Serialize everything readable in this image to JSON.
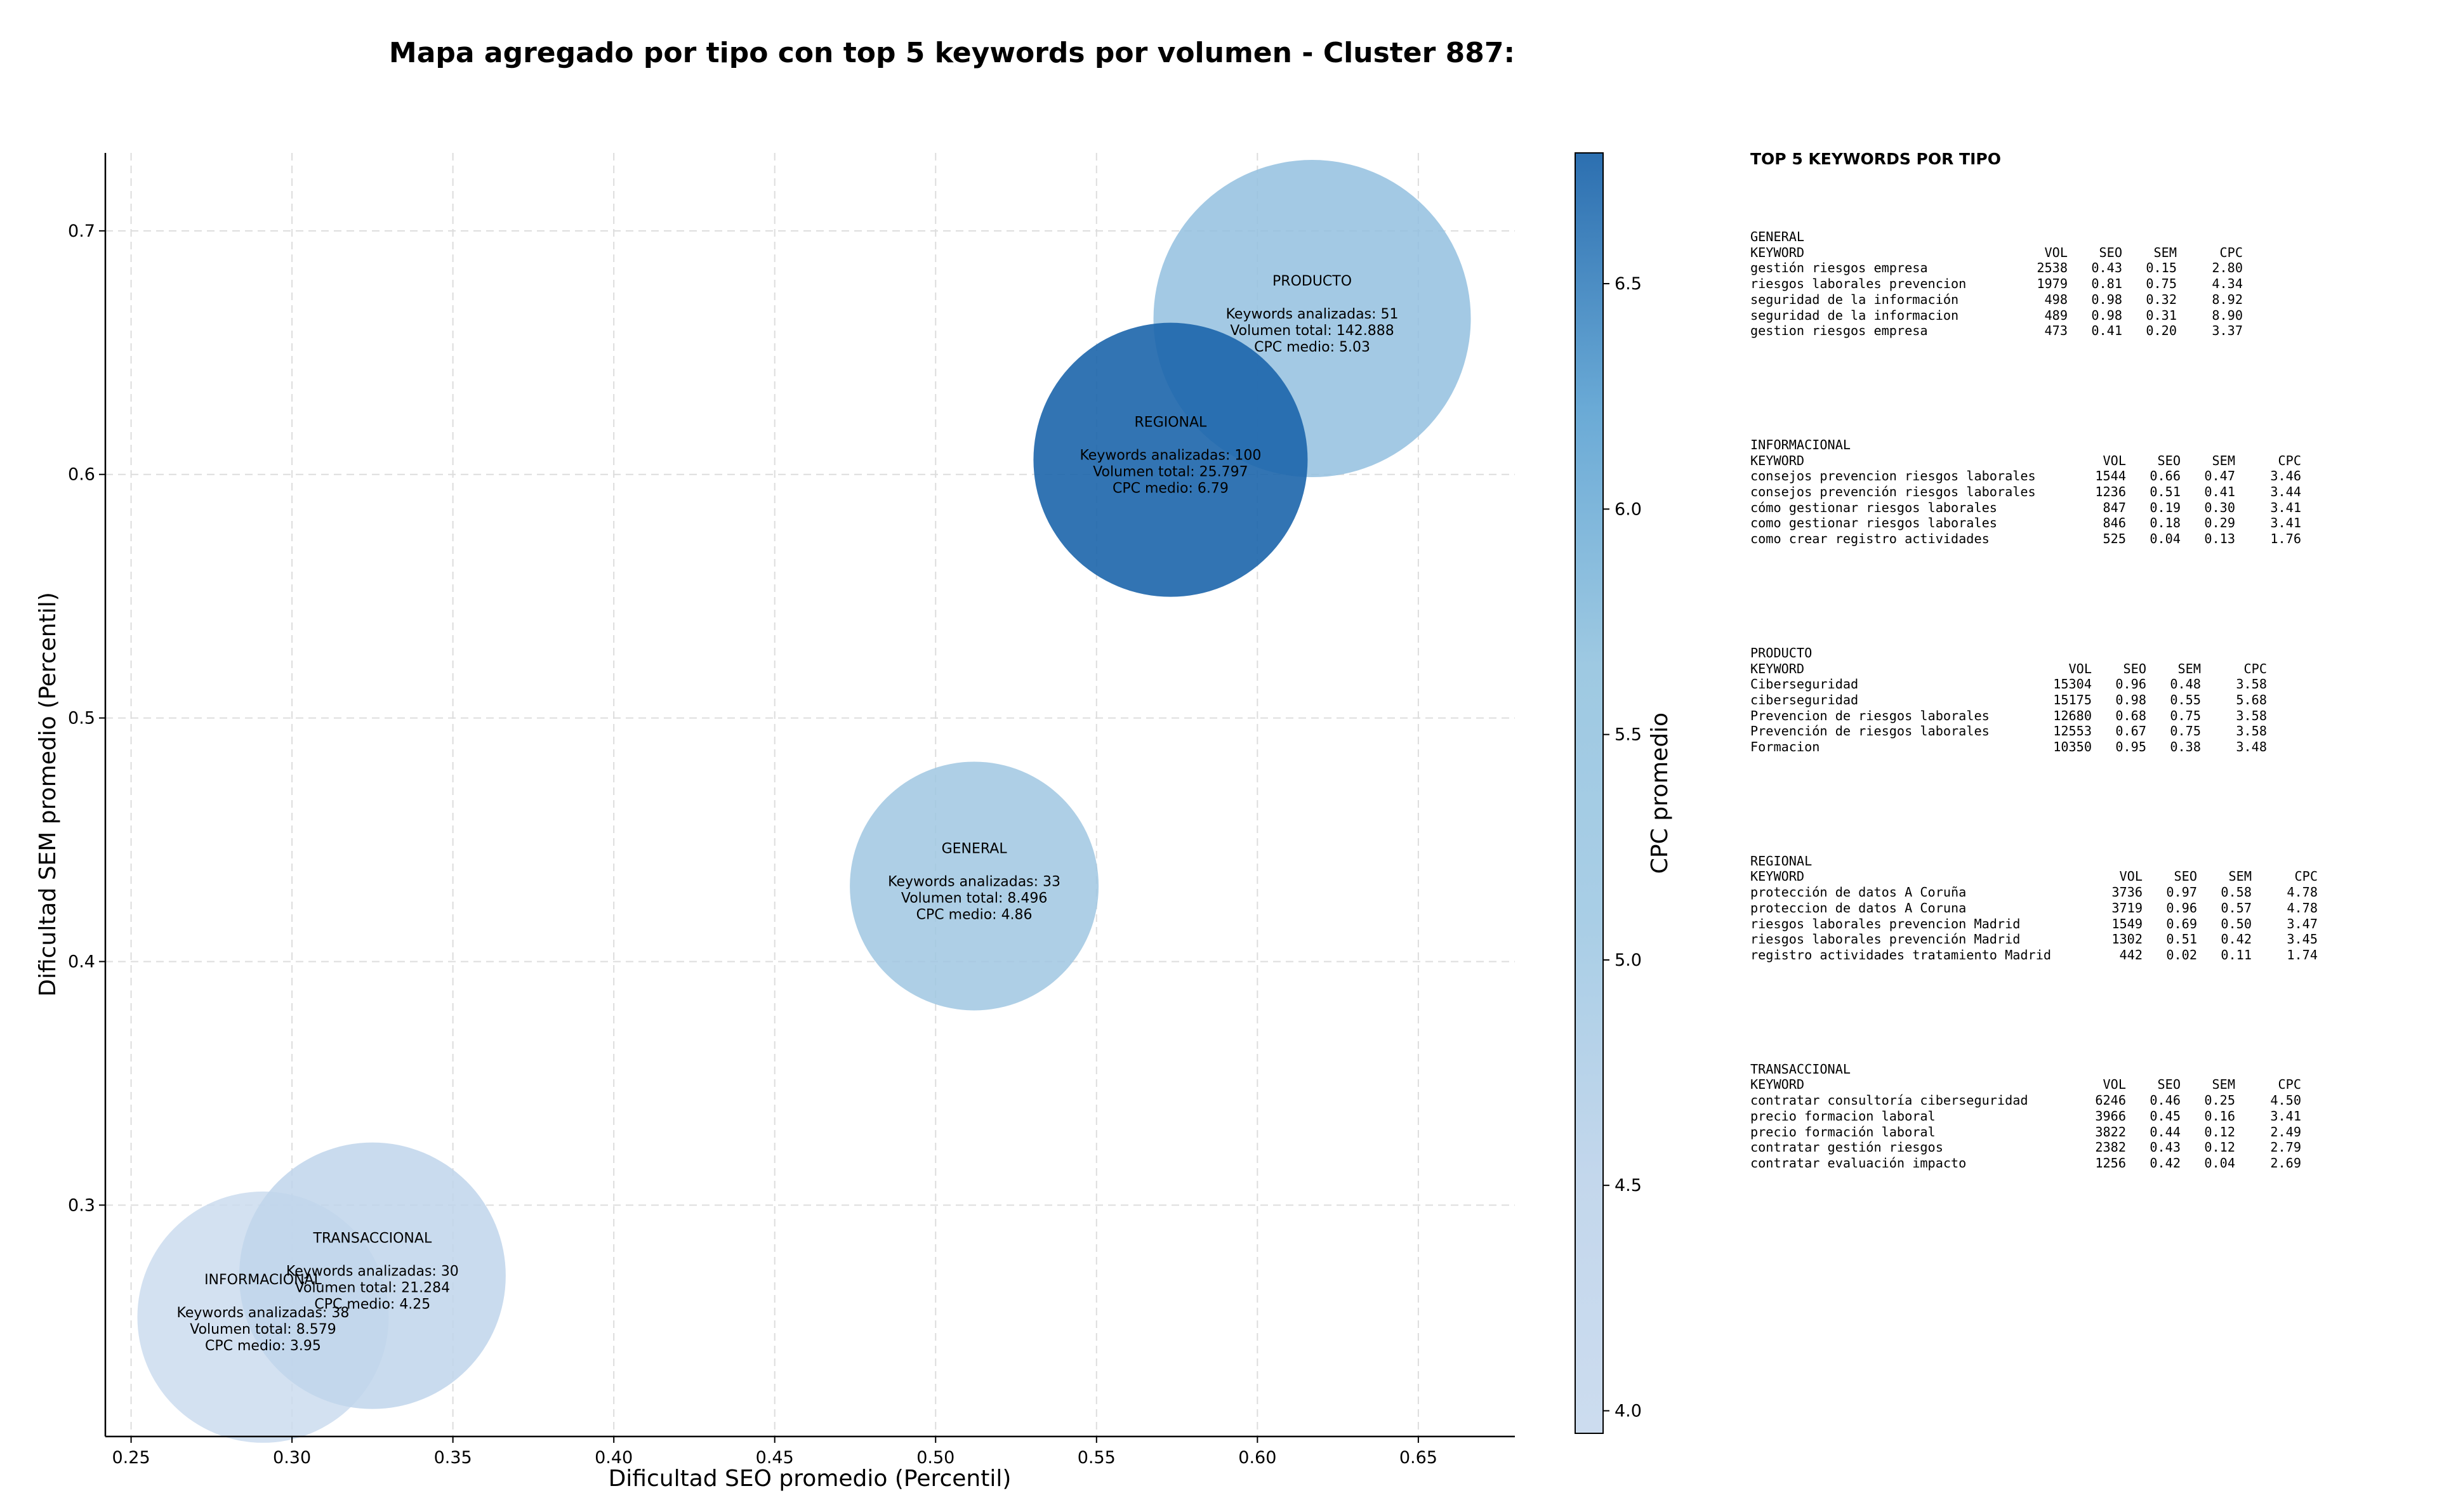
{
  "title": "Mapa agregado por tipo con top 5 keywords por volumen - Cluster 887:",
  "chart_data": {
    "type": "scatter",
    "title": "Mapa agregado por tipo con top 5 keywords por volumen - Cluster 887:",
    "xlabel": "Dificultad SEO promedio (Percentil)",
    "ylabel": "Dificultad SEM promedio (Percentil)",
    "xlim": [
      0.242,
      0.68
    ],
    "ylim": [
      0.205,
      0.732
    ],
    "xticks": [
      "0.25",
      "0.30",
      "0.35",
      "0.40",
      "0.45",
      "0.50",
      "0.55",
      "0.60",
      "0.65"
    ],
    "xtick_values": [
      0.25,
      0.3,
      0.35,
      0.4,
      0.45,
      0.5,
      0.55,
      0.6,
      0.65
    ],
    "yticks": [
      "0.3",
      "0.4",
      "0.5",
      "0.6",
      "0.7"
    ],
    "ytick_values": [
      0.3,
      0.4,
      0.5,
      0.6,
      0.7
    ],
    "grid": true,
    "size_encodes": "Volumen total",
    "color_encodes": "CPC promedio",
    "colorbar": {
      "label": "CPC promedio",
      "range": [
        3.95,
        6.79
      ],
      "ticks": [
        "4.0",
        "4.5",
        "5.0",
        "5.5",
        "6.0",
        "6.5"
      ],
      "tick_values": [
        4.0,
        4.5,
        5.0,
        5.5,
        6.0,
        6.5
      ],
      "colors": [
        "#ccdcef",
        "#c3d7ec",
        "#a9cee6",
        "#9ec9e2",
        "#6aaad6",
        "#2c6fb0"
      ]
    },
    "points": [
      {
        "name": "PRODUCTO",
        "x": 0.617,
        "y": 0.664,
        "keywords_text": "Keywords analizadas: 51",
        "volume_text": "Volumen total: 142.888",
        "cpc_text": "CPC medio: 5.03",
        "volume": 142888,
        "cpc": 5.03,
        "color": "#93c0df"
      },
      {
        "name": "REGIONAL",
        "x": 0.573,
        "y": 0.606,
        "keywords_text": "Keywords analizadas: 100",
        "volume_text": "Volumen total: 25.797",
        "cpc_text": "CPC medio: 6.79",
        "volume": 25797,
        "cpc": 6.79,
        "color": "#1c65ab"
      },
      {
        "name": "GENERAL",
        "x": 0.512,
        "y": 0.431,
        "keywords_text": "Keywords analizadas: 33",
        "volume_text": "Volumen total: 8.496",
        "cpc_text": "CPC medio: 4.86",
        "volume": 8496,
        "cpc": 4.86,
        "color": "#a0c7e2"
      },
      {
        "name": "INFORMACIONAL",
        "x": 0.291,
        "y": 0.254,
        "keywords_text": "Keywords analizadas: 38",
        "volume_text": "Volumen total: 8.579",
        "cpc_text": "CPC medio: 3.95",
        "volume": 8579,
        "cpc": 3.95,
        "color": "#cbdcef"
      },
      {
        "name": "TRANSACCIONAL",
        "x": 0.325,
        "y": 0.271,
        "keywords_text": "Keywords analizadas: 30",
        "volume_text": "Volumen total: 21.284",
        "cpc_text": "CPC medio: 4.25",
        "volume": 21284,
        "cpc": 4.25,
        "color": "#bfd5eb"
      }
    ]
  },
  "side_panel": {
    "title": "TOP 5 KEYWORDS POR TIPO",
    "blocks": [
      {
        "id": "general",
        "type": "GENERAL",
        "header": {
          "keyword": "KEYWORD",
          "vol": "VOL",
          "seo": "SEO",
          "sem": "SEM",
          "cpc": "CPC"
        },
        "rows": [
          {
            "keyword": "gestión riesgos empresa",
            "vol": "2538",
            "seo": "0.43",
            "sem": "0.15",
            "cpc": "2.80"
          },
          {
            "keyword": "riesgos laborales prevencion",
            "vol": "1979",
            "seo": "0.81",
            "sem": "0.75",
            "cpc": "4.34"
          },
          {
            "keyword": "seguridad de la información",
            "vol": "498",
            "seo": "0.98",
            "sem": "0.32",
            "cpc": "8.92"
          },
          {
            "keyword": "seguridad de la informacion",
            "vol": "489",
            "seo": "0.98",
            "sem": "0.31",
            "cpc": "8.90"
          },
          {
            "keyword": "gestion riesgos empresa",
            "vol": "473",
            "seo": "0.41",
            "sem": "0.20",
            "cpc": "3.37"
          }
        ]
      },
      {
        "id": "informacional",
        "type": "INFORMACIONAL",
        "header": {
          "keyword": "KEYWORD",
          "vol": "VOL",
          "seo": "SEO",
          "sem": "SEM",
          "cpc": "CPC"
        },
        "rows": [
          {
            "keyword": "consejos prevencion riesgos laborales",
            "vol": "1544",
            "seo": "0.66",
            "sem": "0.47",
            "cpc": "3.46"
          },
          {
            "keyword": "consejos prevención riesgos laborales",
            "vol": "1236",
            "seo": "0.51",
            "sem": "0.41",
            "cpc": "3.44"
          },
          {
            "keyword": "cómo gestionar riesgos laborales",
            "vol": "847",
            "seo": "0.19",
            "sem": "0.30",
            "cpc": "3.41"
          },
          {
            "keyword": "como gestionar riesgos laborales",
            "vol": "846",
            "seo": "0.18",
            "sem": "0.29",
            "cpc": "3.41"
          },
          {
            "keyword": "como crear registro actividades",
            "vol": "525",
            "seo": "0.04",
            "sem": "0.13",
            "cpc": "1.76"
          }
        ]
      },
      {
        "id": "producto",
        "type": "PRODUCTO",
        "header": {
          "keyword": "KEYWORD",
          "vol": "VOL",
          "seo": "SEO",
          "sem": "SEM",
          "cpc": "CPC"
        },
        "rows": [
          {
            "keyword": "Ciberseguridad",
            "vol": "15304",
            "seo": "0.96",
            "sem": "0.48",
            "cpc": "3.58"
          },
          {
            "keyword": "ciberseguridad",
            "vol": "15175",
            "seo": "0.98",
            "sem": "0.55",
            "cpc": "5.68"
          },
          {
            "keyword": "Prevencion de riesgos laborales",
            "vol": "12680",
            "seo": "0.68",
            "sem": "0.75",
            "cpc": "3.58"
          },
          {
            "keyword": "Prevención de riesgos laborales",
            "vol": "12553",
            "seo": "0.67",
            "sem": "0.75",
            "cpc": "3.58"
          },
          {
            "keyword": "Formacion",
            "vol": "10350",
            "seo": "0.95",
            "sem": "0.38",
            "cpc": "3.48"
          }
        ]
      },
      {
        "id": "regional",
        "type": "REGIONAL",
        "header": {
          "keyword": "KEYWORD",
          "vol": "VOL",
          "seo": "SEO",
          "sem": "SEM",
          "cpc": "CPC"
        },
        "rows": [
          {
            "keyword": "protección de datos A Coruña",
            "vol": "3736",
            "seo": "0.97",
            "sem": "0.58",
            "cpc": "4.78"
          },
          {
            "keyword": "proteccion de datos A Coruna",
            "vol": "3719",
            "seo": "0.96",
            "sem": "0.57",
            "cpc": "4.78"
          },
          {
            "keyword": "riesgos laborales prevencion Madrid",
            "vol": "1549",
            "seo": "0.69",
            "sem": "0.50",
            "cpc": "3.47"
          },
          {
            "keyword": "riesgos laborales prevención Madrid",
            "vol": "1302",
            "seo": "0.51",
            "sem": "0.42",
            "cpc": "3.45"
          },
          {
            "keyword": "registro actividades tratamiento Madrid",
            "vol": "442",
            "seo": "0.02",
            "sem": "0.11",
            "cpc": "1.74"
          }
        ]
      },
      {
        "id": "transaccional",
        "type": "TRANSACCIONAL",
        "header": {
          "keyword": "KEYWORD",
          "vol": "VOL",
          "seo": "SEO",
          "sem": "SEM",
          "cpc": "CPC"
        },
        "rows": [
          {
            "keyword": "contratar consultoría ciberseguridad",
            "vol": "6246",
            "seo": "0.46",
            "sem": "0.25",
            "cpc": "4.50"
          },
          {
            "keyword": "precio formacion laboral",
            "vol": "3966",
            "seo": "0.45",
            "sem": "0.16",
            "cpc": "3.41"
          },
          {
            "keyword": "precio formación laboral",
            "vol": "3822",
            "seo": "0.44",
            "sem": "0.12",
            "cpc": "2.49"
          },
          {
            "keyword": "contratar gestión riesgos",
            "vol": "2382",
            "seo": "0.43",
            "sem": "0.12",
            "cpc": "2.79"
          },
          {
            "keyword": "contratar evaluación impacto",
            "vol": "1256",
            "seo": "0.42",
            "sem": "0.04",
            "cpc": "2.69"
          }
        ]
      }
    ]
  }
}
